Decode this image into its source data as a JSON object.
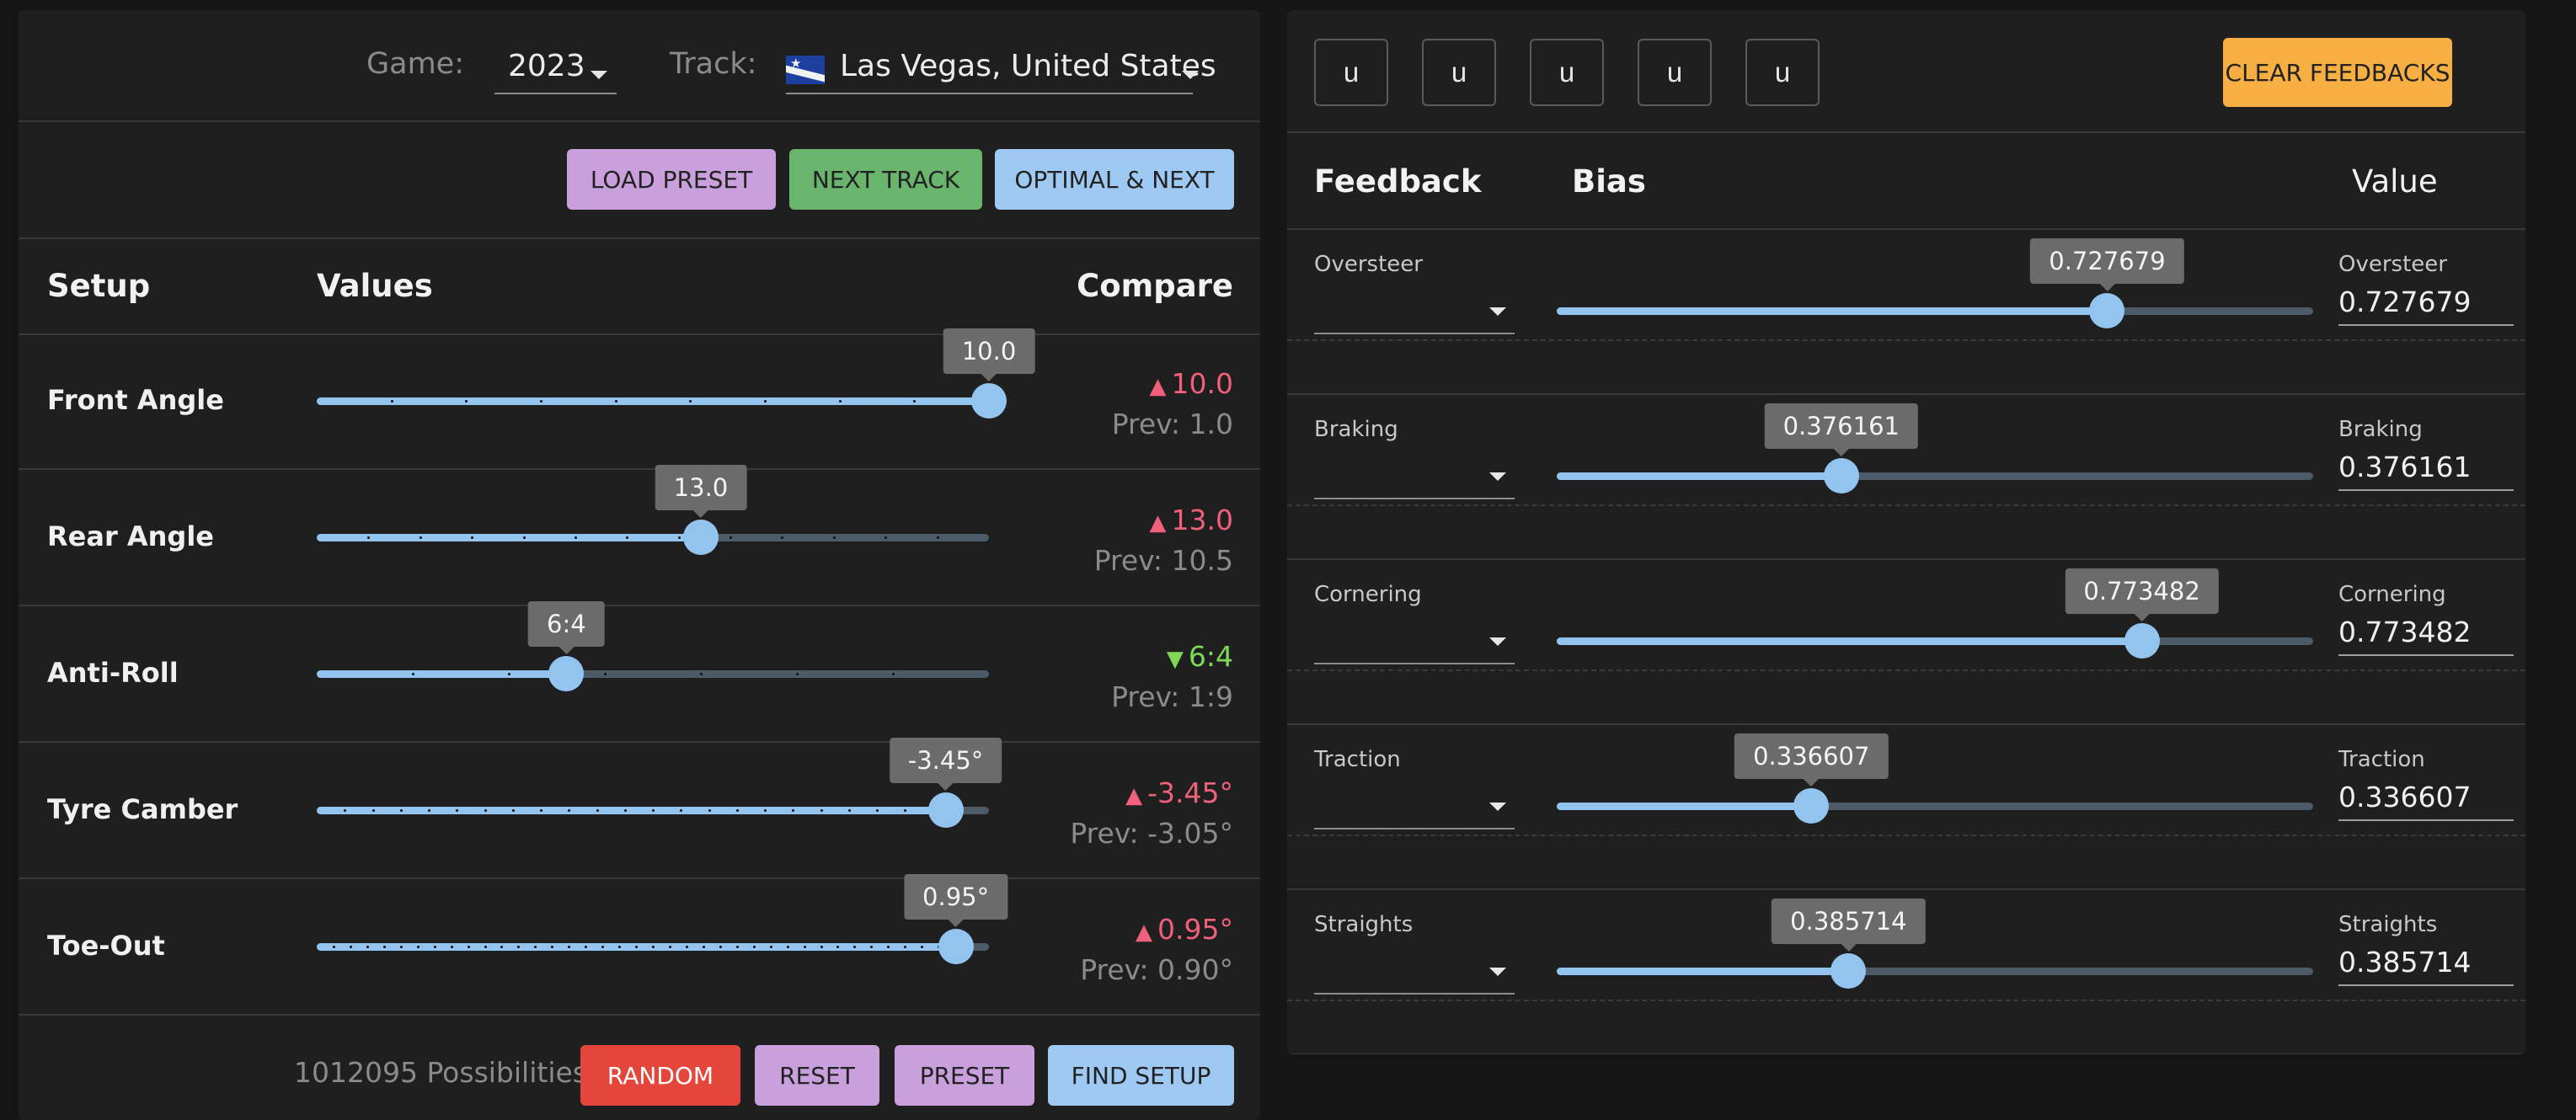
{
  "top": {
    "game_label": "Game:",
    "game_value": "2023",
    "track_label": "Track:",
    "track_value": "Las Vegas, United States",
    "flag_icon": "nevada-flag-icon"
  },
  "actions": {
    "load_preset": "LOAD PRESET",
    "next_track": "NEXT TRACK",
    "optimal_next": "OPTIMAL & NEXT"
  },
  "setup_headers": {
    "setup": "Setup",
    "values": "Values",
    "compare": "Compare"
  },
  "setup_rows": [
    {
      "label": "Front Angle",
      "value": "10.0",
      "level": 1.0,
      "ticks": 9,
      "compare": "10.0",
      "direction": "up",
      "prev": "Prev: 1.0"
    },
    {
      "label": "Rear Angle",
      "value": "13.0",
      "level": 0.5714,
      "ticks": 13,
      "compare": "13.0",
      "direction": "up",
      "prev": "Prev: 10.5"
    },
    {
      "label": "Anti-Roll",
      "value": "6:4",
      "level": 0.3714,
      "ticks": 7,
      "compare": "6:4",
      "direction": "down",
      "prev": "Prev: 1:9"
    },
    {
      "label": "Tyre Camber",
      "value": "-3.45°",
      "level": 0.9355,
      "ticks": 24,
      "compare": "-3.45°",
      "direction": "up",
      "prev": "Prev: -3.05°"
    },
    {
      "label": "Toe-Out",
      "value": "0.95°",
      "level": 0.9506,
      "ticks": 40,
      "compare": "0.95°",
      "direction": "up",
      "prev": "Prev: 0.90°"
    }
  ],
  "footer": {
    "possibilities": "1012095 Possibilities",
    "random": "RANDOM",
    "reset": "RESET",
    "preset": "PRESET",
    "find_setup": "FIND SETUP"
  },
  "feedback_buttons": [
    "u",
    "u",
    "u",
    "u",
    "u"
  ],
  "clear_feedbacks": "CLEAR FEEDBACKS",
  "feedback_headers": {
    "feedback": "Feedback",
    "bias": "Bias",
    "value": "Value"
  },
  "feedback_rows": [
    {
      "label": "Oversteer",
      "bias": "0.727679",
      "level": 0.727679,
      "value_label": "Oversteer",
      "value": "0.727679"
    },
    {
      "label": "Braking",
      "bias": "0.376161",
      "level": 0.376161,
      "value_label": "Braking",
      "value": "0.376161"
    },
    {
      "label": "Cornering",
      "bias": "0.773482",
      "level": 0.773482,
      "value_label": "Cornering",
      "value": "0.773482"
    },
    {
      "label": "Traction",
      "bias": "0.336607",
      "level": 0.336607,
      "value_label": "Traction",
      "value": "0.336607"
    },
    {
      "label": "Straights",
      "bias": "0.385714",
      "level": 0.385714,
      "value_label": "Straights",
      "value": "0.385714"
    }
  ],
  "colors": {
    "slider_fill": "#93c4f0",
    "slider_rail": "#4d5a68",
    "up": "#f0607a",
    "down": "#7dd956",
    "clear_button": "#f7ae43"
  }
}
